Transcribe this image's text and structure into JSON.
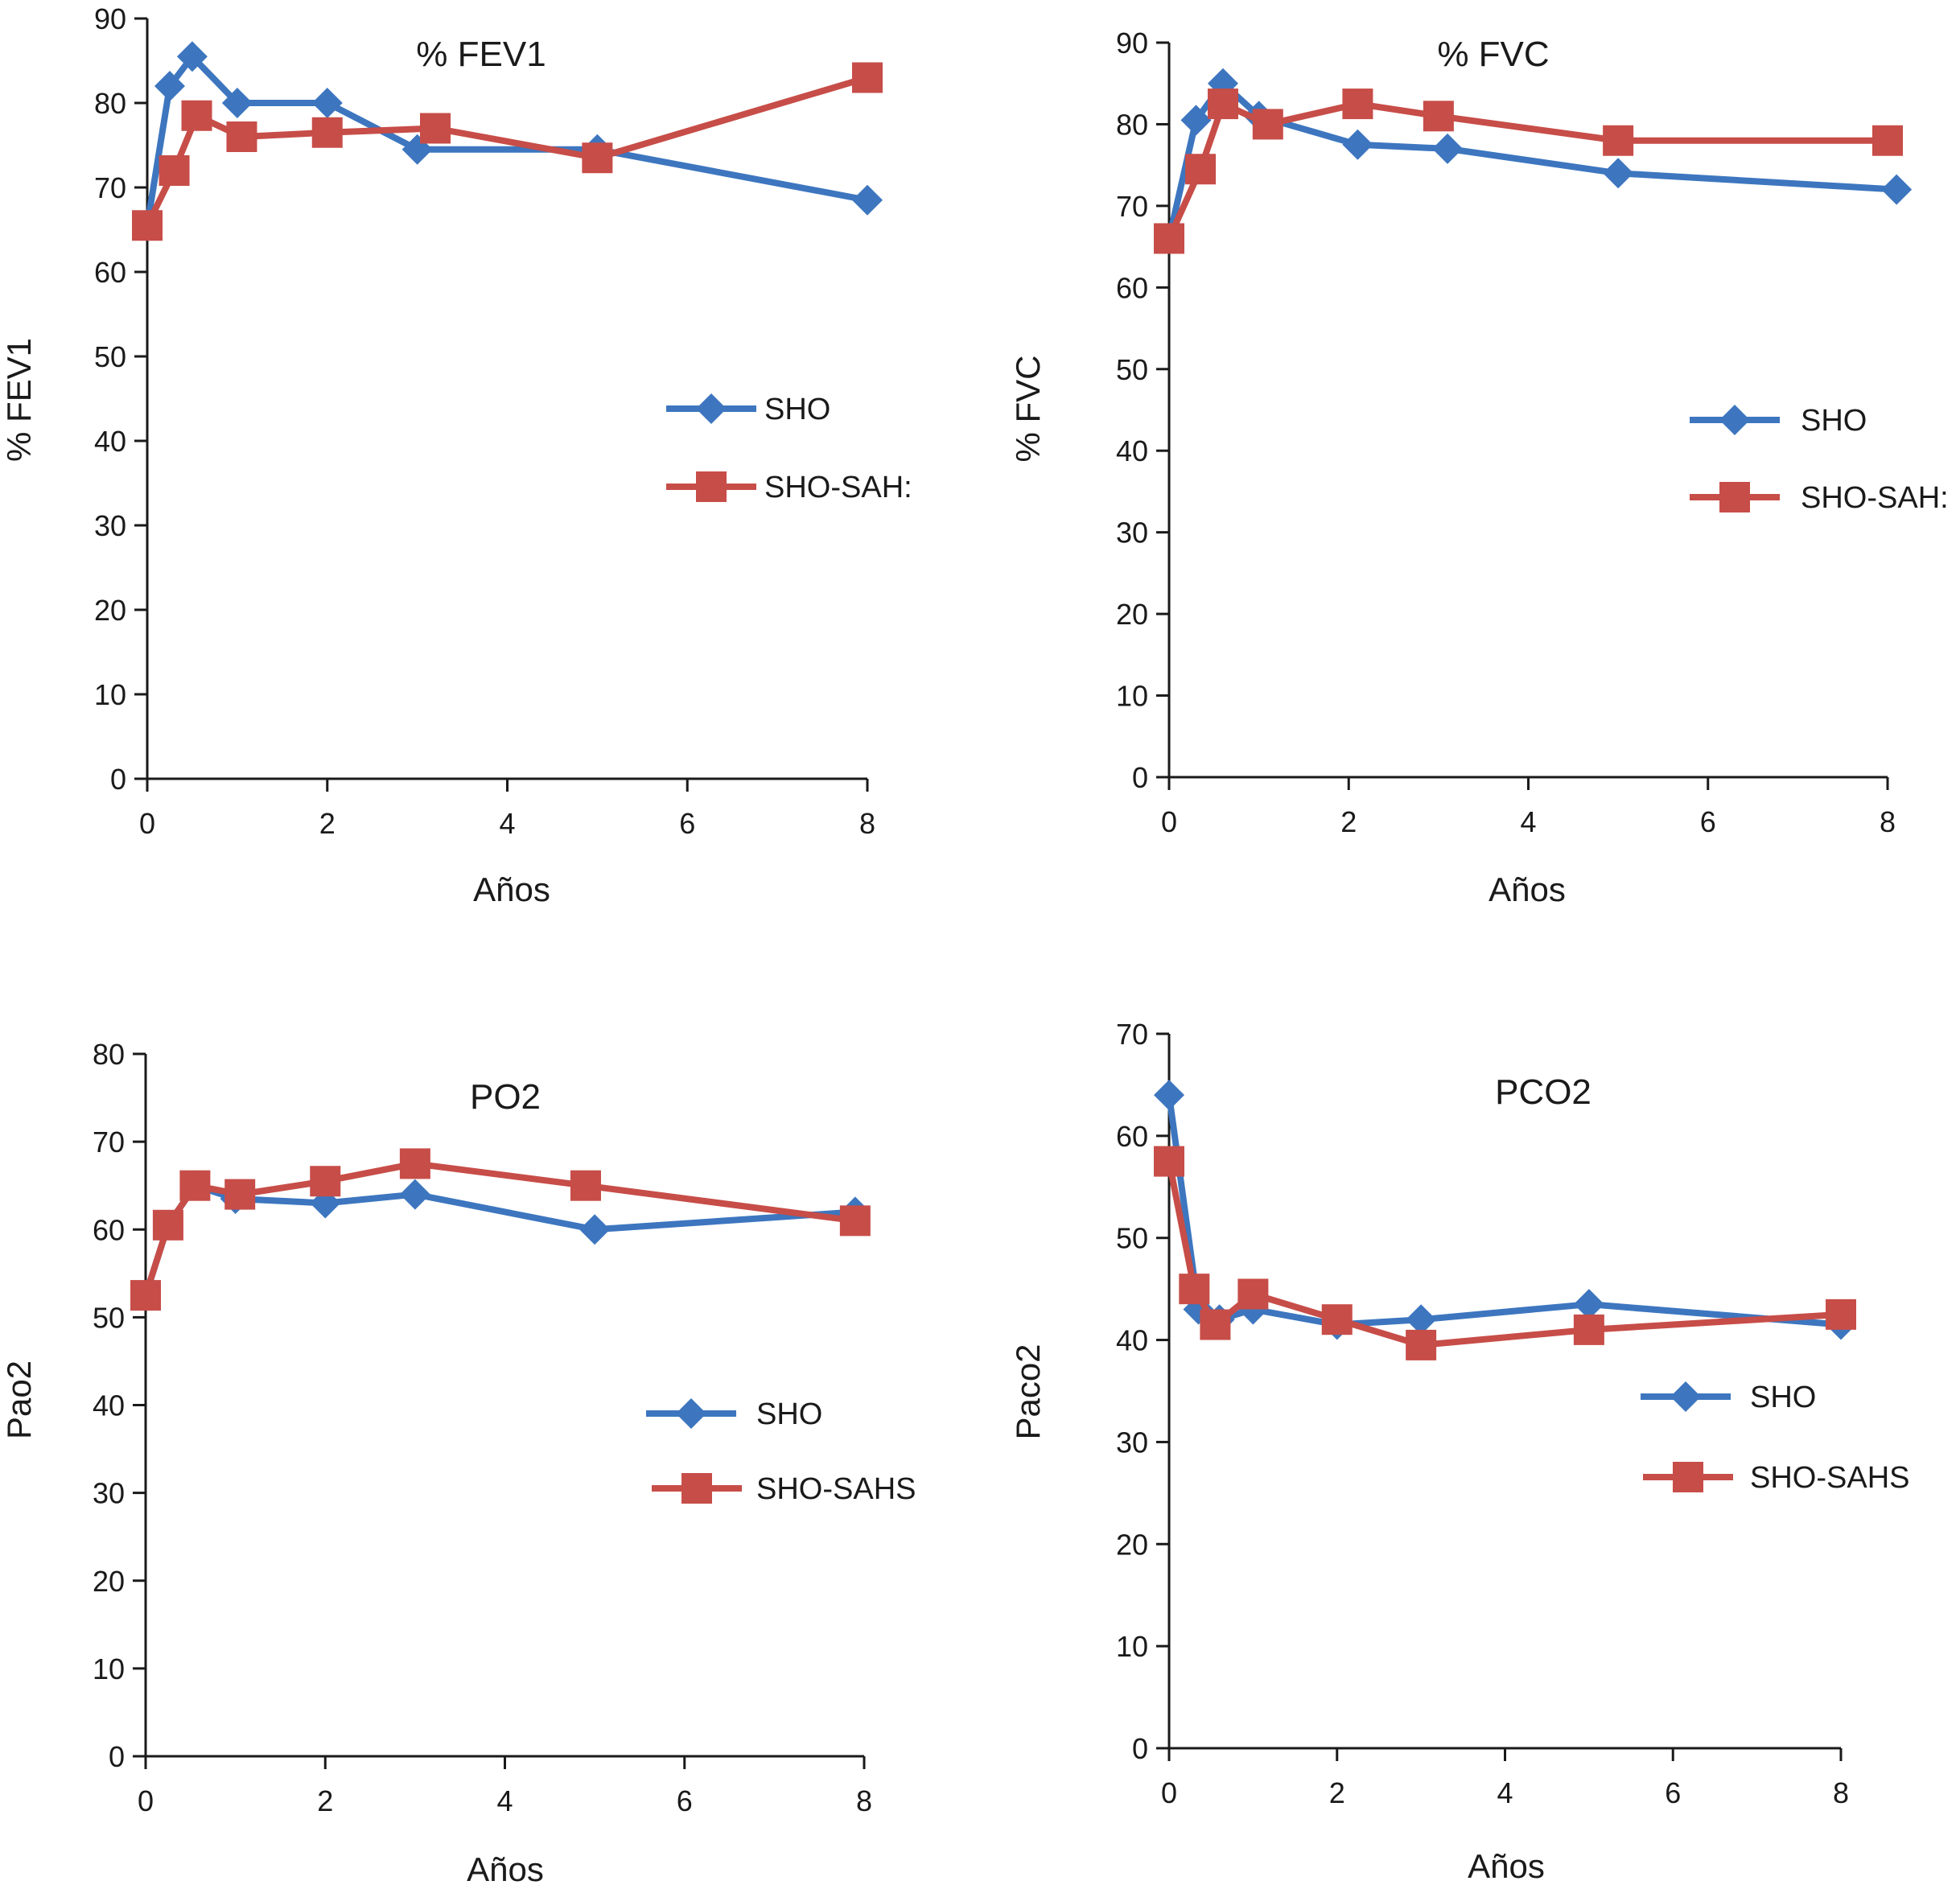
{
  "colors": {
    "sho": "#3d76bf",
    "sahs": "#c74d48",
    "axis": "#1a1a1a"
  },
  "chart_data": [
    {
      "type": "line",
      "title": "% FEV1",
      "xlabel": "Años",
      "ylabel": "% FEV1",
      "xlim": [
        0,
        8
      ],
      "ylim": [
        0,
        90
      ],
      "xticks": [
        0,
        2,
        4,
        6,
        8
      ],
      "yticks": [
        0,
        10,
        20,
        30,
        40,
        50,
        60,
        70,
        80,
        90
      ],
      "grid": false,
      "legend": "right",
      "series": [
        {
          "name": "SHO",
          "marker": "diamond",
          "color_key": "sho",
          "x": [
            0,
            0.25,
            0.5,
            1,
            2,
            3,
            5,
            8
          ],
          "y": [
            65.5,
            82,
            85.5,
            80,
            80,
            74.5,
            74.5,
            68.5
          ]
        },
        {
          "name": "SHO-SAH:",
          "marker": "square",
          "color_key": "sahs",
          "x": [
            0,
            0.3,
            0.55,
            1.05,
            2,
            3.2,
            5,
            8
          ],
          "y": [
            65.5,
            72,
            78.5,
            76,
            76.5,
            77,
            73.5,
            83
          ]
        }
      ]
    },
    {
      "type": "line",
      "title": "% FVC",
      "xlabel": "Años",
      "ylabel": "% FVC",
      "xlim": [
        0,
        8
      ],
      "ylim": [
        0,
        90
      ],
      "xticks": [
        0,
        2,
        4,
        6,
        8
      ],
      "yticks": [
        0,
        10,
        20,
        30,
        40,
        50,
        60,
        70,
        80,
        90
      ],
      "grid": false,
      "legend": "right",
      "series": [
        {
          "name": "SHO",
          "marker": "diamond",
          "color_key": "sho",
          "x": [
            0,
            0.3,
            0.6,
            1,
            2.1,
            3.1,
            5,
            8.1
          ],
          "y": [
            66,
            80.5,
            85,
            81,
            77.5,
            77,
            74,
            72
          ]
        },
        {
          "name": "SHO-SAH:",
          "marker": "square",
          "color_key": "sahs",
          "x": [
            0,
            0.35,
            0.6,
            1.1,
            2.1,
            3,
            5,
            8
          ],
          "y": [
            66,
            74.5,
            82.5,
            80,
            82.5,
            81,
            78,
            78
          ]
        }
      ]
    },
    {
      "type": "line",
      "title": "PO2",
      "xlabel": "Años",
      "ylabel": "Pao2",
      "xlim": [
        0,
        8
      ],
      "ylim": [
        0,
        80
      ],
      "xticks": [
        0,
        2,
        4,
        6,
        8
      ],
      "yticks": [
        0,
        10,
        20,
        30,
        40,
        50,
        60,
        70,
        80
      ],
      "grid": false,
      "legend": "right",
      "series": [
        {
          "name": "SHO",
          "marker": "diamond",
          "color_key": "sho",
          "x": [
            0,
            0.25,
            0.55,
            1,
            2,
            3,
            5,
            7.9
          ],
          "y": [
            52.5,
            60.5,
            65,
            63.5,
            63,
            64,
            60,
            62
          ]
        },
        {
          "name": "SHO-SAHS",
          "marker": "square",
          "color_key": "sahs",
          "x": [
            0,
            0.25,
            0.55,
            1.05,
            2,
            3,
            4.9,
            7.9
          ],
          "y": [
            52.5,
            60.5,
            65,
            64,
            65.5,
            67.5,
            65,
            61
          ]
        }
      ]
    },
    {
      "type": "line",
      "title": "PCO2",
      "xlabel": "Años",
      "ylabel": "Paco2",
      "xlim": [
        0,
        8
      ],
      "ylim": [
        0,
        70
      ],
      "xticks": [
        0,
        2,
        4,
        6,
        8
      ],
      "yticks": [
        0,
        10,
        20,
        30,
        40,
        50,
        60,
        70
      ],
      "grid": false,
      "legend": "right",
      "series": [
        {
          "name": "SHO",
          "marker": "diamond",
          "color_key": "sho",
          "x": [
            0,
            0.35,
            0.6,
            1,
            2,
            3,
            5,
            8
          ],
          "y": [
            64,
            43,
            42,
            43,
            41.5,
            42,
            43.5,
            41.5
          ]
        },
        {
          "name": "SHO-SAHS",
          "marker": "square",
          "color_key": "sahs",
          "x": [
            0,
            0.3,
            0.55,
            1,
            2,
            3,
            5,
            8
          ],
          "y": [
            57.5,
            45,
            41.5,
            44.5,
            42,
            39.5,
            41,
            42.5
          ]
        }
      ]
    }
  ]
}
